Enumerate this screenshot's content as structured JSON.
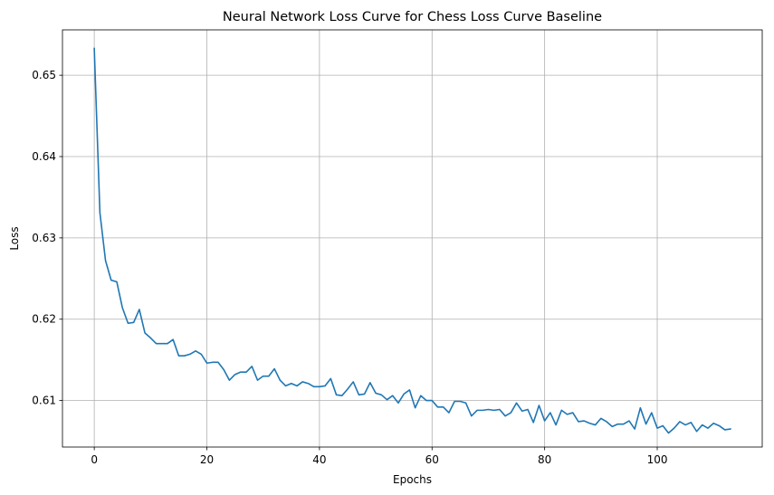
{
  "chart_data": {
    "type": "line",
    "title": "Neural Network Loss Curve for Chess Loss Curve Baseline",
    "xlabel": "Epochs",
    "ylabel": "Loss",
    "xlim": [
      -5.65,
      118.65
    ],
    "ylim": [
      0.60428,
      0.65558
    ],
    "xticks": [
      0,
      20,
      40,
      60,
      80,
      100
    ],
    "xtick_labels": [
      "0",
      "20",
      "40",
      "60",
      "80",
      "100"
    ],
    "yticks": [
      0.61,
      0.62,
      0.63,
      0.64,
      0.65
    ],
    "ytick_labels": [
      "0.61",
      "0.62",
      "0.63",
      "0.64",
      "0.65"
    ],
    "grid": true,
    "color": "#1f77b4",
    "series": [
      {
        "x": [
          0,
          1,
          2,
          3,
          4,
          5,
          6,
          7,
          8,
          9,
          10,
          11,
          12,
          13,
          14,
          15,
          16,
          17,
          18,
          19,
          20,
          21,
          22,
          23,
          24,
          25,
          26,
          27,
          28,
          29,
          30,
          31,
          32,
          33,
          34,
          35,
          36,
          37,
          38,
          39,
          40,
          41,
          42,
          43,
          44,
          45,
          46,
          47,
          48,
          49,
          50,
          51,
          52,
          53,
          54,
          55,
          56,
          57,
          58,
          59,
          60,
          61,
          62,
          63,
          64,
          65,
          66,
          67,
          68,
          69,
          70,
          71,
          72,
          73,
          74,
          75,
          76,
          77,
          78,
          79,
          80,
          81,
          82,
          83,
          84,
          85,
          86,
          87,
          88,
          89,
          90,
          91,
          92,
          93,
          94,
          95,
          96,
          97,
          98,
          99,
          100,
          101,
          102,
          103,
          104,
          105,
          106,
          107,
          108,
          109,
          110,
          111,
          112,
          113
        ],
        "y": [
          0.6533,
          0.6331,
          0.6272,
          0.6248,
          0.6246,
          0.6214,
          0.6195,
          0.6196,
          0.6212,
          0.6183,
          0.6177,
          0.617,
          0.617,
          0.617,
          0.6175,
          0.6155,
          0.6155,
          0.6157,
          0.6161,
          0.6157,
          0.6146,
          0.6147,
          0.6147,
          0.6138,
          0.6125,
          0.6132,
          0.6135,
          0.6135,
          0.6142,
          0.6125,
          0.613,
          0.613,
          0.6139,
          0.6125,
          0.6118,
          0.6121,
          0.6118,
          0.6123,
          0.6121,
          0.6117,
          0.6117,
          0.6118,
          0.6127,
          0.6107,
          0.6106,
          0.6114,
          0.6123,
          0.6107,
          0.6108,
          0.6122,
          0.6109,
          0.6107,
          0.6101,
          0.6106,
          0.6097,
          0.6108,
          0.6113,
          0.6091,
          0.6106,
          0.61,
          0.61,
          0.6092,
          0.6092,
          0.6085,
          0.6099,
          0.6099,
          0.6097,
          0.6081,
          0.6088,
          0.6088,
          0.6089,
          0.6088,
          0.6089,
          0.6081,
          0.6085,
          0.6097,
          0.6087,
          0.6089,
          0.6073,
          0.6094,
          0.6075,
          0.6085,
          0.607,
          0.6088,
          0.6083,
          0.6085,
          0.6074,
          0.6075,
          0.6072,
          0.607,
          0.6078,
          0.6074,
          0.6068,
          0.6071,
          0.6071,
          0.6075,
          0.6065,
          0.6091,
          0.6071,
          0.6085,
          0.6066,
          0.6069,
          0.606,
          0.6066,
          0.6074,
          0.607,
          0.6073,
          0.6062,
          0.607,
          0.6066,
          0.6072,
          0.6069,
          0.6064,
          0.6065
        ]
      }
    ]
  }
}
